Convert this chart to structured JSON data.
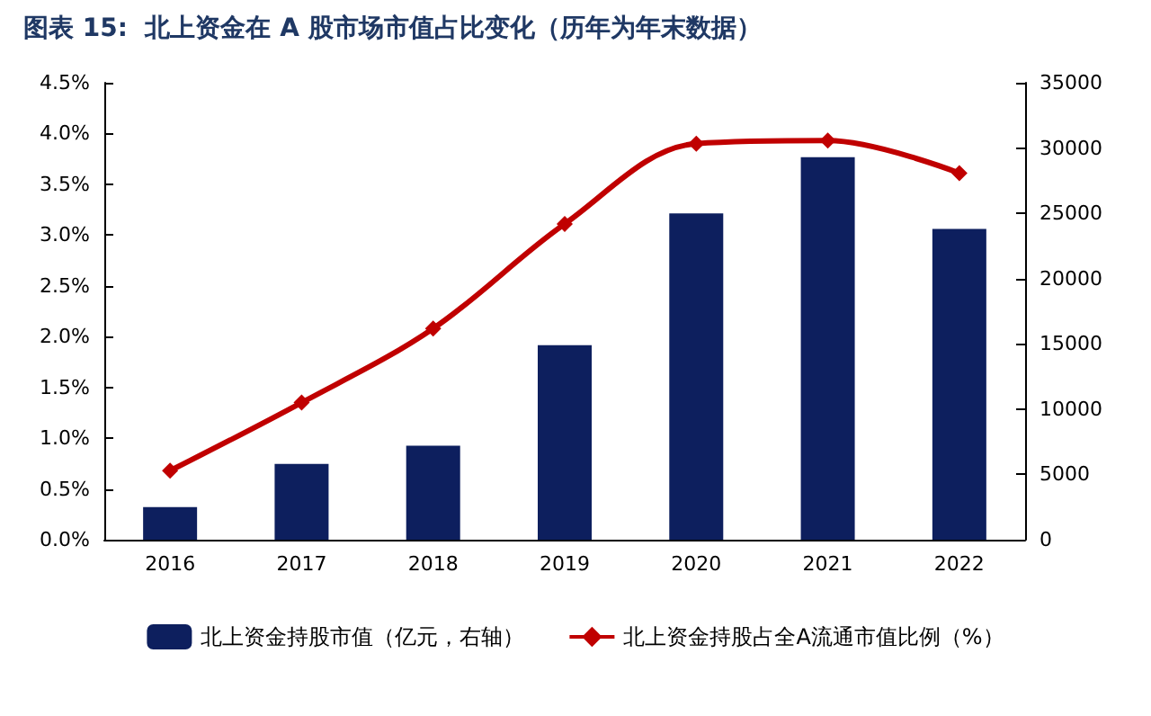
{
  "chart_data": {
    "type": "bar",
    "title": "图表 15:  北上资金在 A 股市场市值占比变化（历年为年末数据）",
    "categories": [
      "2016",
      "2017",
      "2018",
      "2019",
      "2020",
      "2021",
      "2022"
    ],
    "series": [
      {
        "name": "北上资金持股市值（亿元，右轴）",
        "axis": "y2",
        "color": "#0d1f5e",
        "values": [
          2500,
          5800,
          7200,
          14900,
          25000,
          29300,
          23800
        ]
      },
      {
        "name": "北上资金持股占全A流通市值比例（%）",
        "type": "line",
        "color": "#c00000",
        "marker": "diamond",
        "values": [
          0.68,
          1.35,
          2.08,
          3.11,
          3.9,
          3.93,
          3.61
        ]
      }
    ],
    "ylim": [
      0,
      4.5
    ],
    "yticks": [
      {
        "value": 0,
        "label": "0.0%"
      },
      {
        "value": 0.5,
        "label": "0.5%"
      },
      {
        "value": 1,
        "label": "1.0%"
      },
      {
        "value": 1.5,
        "label": "1.5%"
      },
      {
        "value": 2,
        "label": "2.0%"
      },
      {
        "value": 2.5,
        "label": "2.5%"
      },
      {
        "value": 3,
        "label": "3.0%"
      },
      {
        "value": 3.5,
        "label": "3.5%"
      },
      {
        "value": 4,
        "label": "4.0%"
      },
      {
        "value": 4.5,
        "label": "4.5%"
      }
    ],
    "y2lim": [
      0,
      35000
    ],
    "y2ticks": [
      0,
      5000,
      10000,
      15000,
      20000,
      25000,
      30000,
      35000
    ],
    "legend": "bottom",
    "grid": false
  }
}
